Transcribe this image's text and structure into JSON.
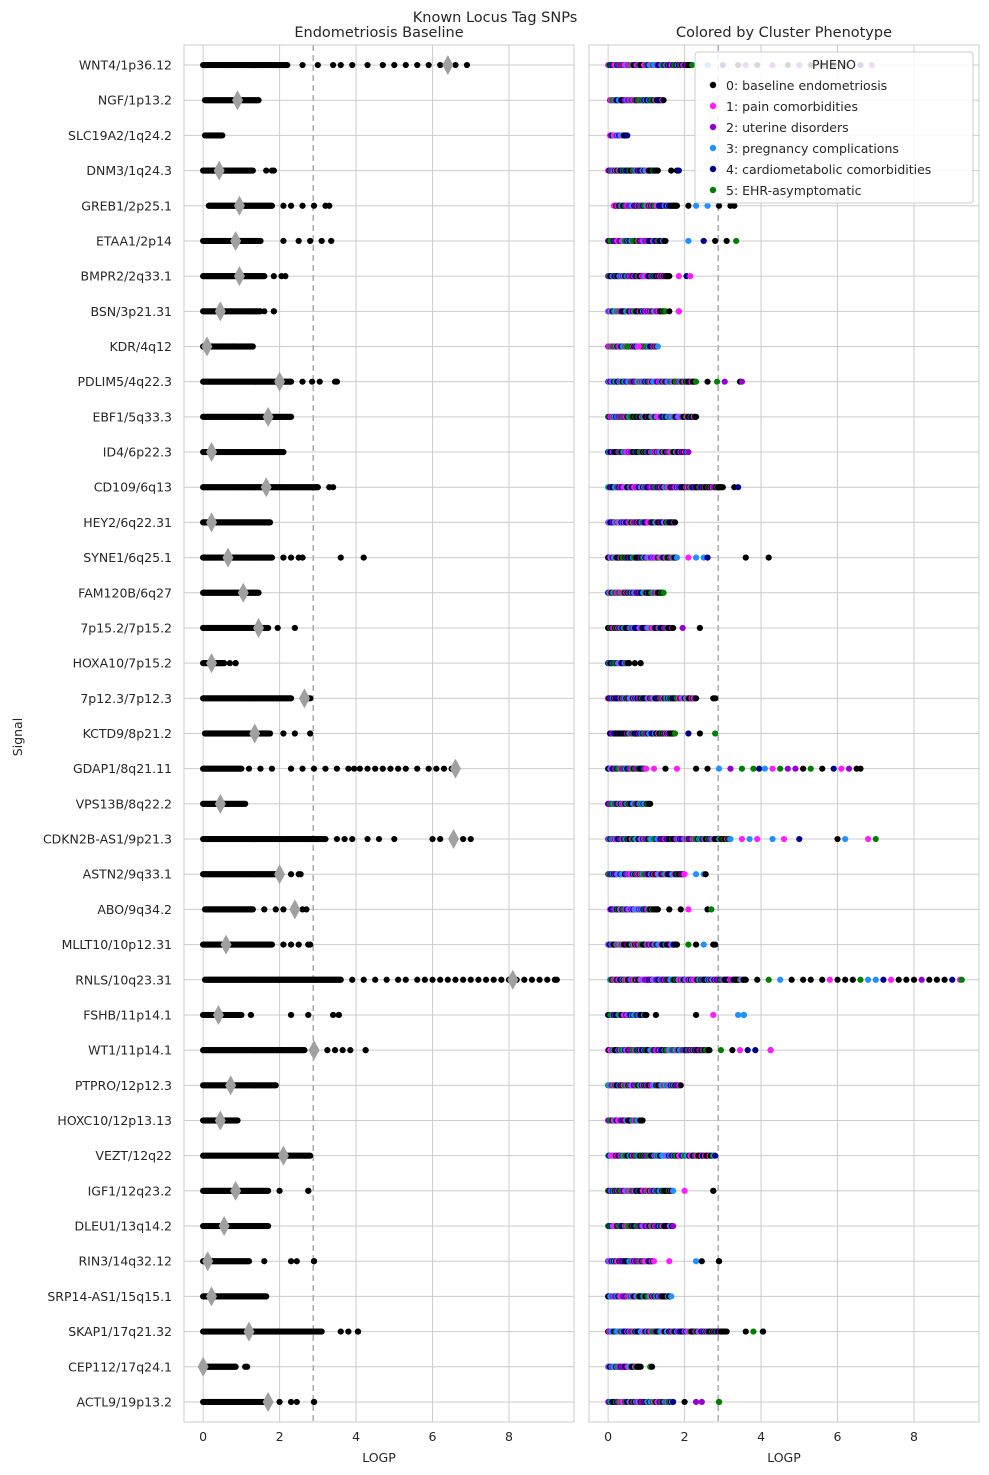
{
  "chart_data": {
    "type": "scatter",
    "suptitle": "Known Locus Tag SNPs",
    "ylabel": "Signal",
    "xlim": [
      -0.5,
      9.7
    ],
    "xticks": [
      0,
      2,
      4,
      6,
      8
    ],
    "threshold_line": 2.88,
    "grid": true,
    "colors": {
      "diamond": "#a0a0a0",
      "threshold": "#b0b0b0",
      "grid": "#cccccc",
      "frame": "#cccccc"
    },
    "signals": [
      {
        "name": "WNT4/1p36.12",
        "min": 0.0,
        "dense_end": 2.2,
        "max": 6.9,
        "median": 6.4,
        "extra": [
          2.6,
          3.0,
          3.4,
          3.6,
          3.9,
          4.3,
          4.7,
          5.0,
          5.3,
          5.6,
          5.9,
          6.2,
          6.6
        ]
      },
      {
        "name": "NGF/1p13.2",
        "min": 0.05,
        "dense_end": 1.45,
        "max": 1.45,
        "median": 0.9,
        "extra": []
      },
      {
        "name": "SLC19A2/1q24.2",
        "min": 0.05,
        "dense_end": 0.5,
        "max": 0.5,
        "median": null,
        "extra": []
      },
      {
        "name": "DNM3/1q24.3",
        "min": 0.0,
        "dense_end": 1.3,
        "max": 1.85,
        "median": 0.42,
        "extra": [
          1.65,
          1.8
        ]
      },
      {
        "name": "GREB1/2p25.1",
        "min": 0.15,
        "dense_end": 1.8,
        "max": 3.3,
        "median": 0.95,
        "extra": [
          2.1,
          2.3,
          2.6,
          2.9,
          3.2
        ]
      },
      {
        "name": "ETAA1/2p14",
        "min": 0.0,
        "dense_end": 1.5,
        "max": 3.35,
        "median": 0.85,
        "extra": [
          2.1,
          2.5,
          2.8,
          3.1
        ]
      },
      {
        "name": "BMPR2/2q33.1",
        "min": 0.0,
        "dense_end": 1.6,
        "max": 2.15,
        "median": 0.95,
        "extra": [
          1.85,
          2.05
        ]
      },
      {
        "name": "BSN/3p21.31",
        "min": 0.0,
        "dense_end": 1.5,
        "max": 1.85,
        "median": 0.45,
        "extra": [
          1.6,
          1.85
        ]
      },
      {
        "name": "KDR/4q12",
        "min": 0.0,
        "dense_end": 1.3,
        "max": 1.3,
        "median": 0.1,
        "extra": [
          0.5,
          0.8
        ]
      },
      {
        "name": "PDLIM5/4q22.3",
        "min": 0.0,
        "dense_end": 2.3,
        "max": 3.5,
        "median": 2.0,
        "extra": [
          2.6,
          2.85,
          3.05,
          3.45
        ]
      },
      {
        "name": "EBF1/5q33.3",
        "min": 0.0,
        "dense_end": 2.3,
        "max": 2.3,
        "median": 1.7,
        "extra": []
      },
      {
        "name": "ID4/6p22.3",
        "min": 0.0,
        "dense_end": 2.1,
        "max": 2.1,
        "median": 0.22,
        "extra": []
      },
      {
        "name": "CD109/6q13",
        "min": 0.0,
        "dense_end": 3.0,
        "max": 3.4,
        "median": 1.65,
        "extra": [
          3.3
        ]
      },
      {
        "name": "HEY2/6q22.31",
        "min": 0.0,
        "dense_end": 1.75,
        "max": 1.75,
        "median": 0.22,
        "extra": []
      },
      {
        "name": "SYNE1/6q25.1",
        "min": 0.0,
        "dense_end": 1.8,
        "max": 4.2,
        "median": 0.65,
        "extra": [
          2.1,
          2.3,
          2.5,
          2.6,
          3.6
        ]
      },
      {
        "name": "FAM120B/6q27",
        "min": 0.0,
        "dense_end": 1.45,
        "max": 1.45,
        "median": 1.05,
        "extra": []
      },
      {
        "name": "7p15.2/7p15.2",
        "min": 0.0,
        "dense_end": 1.7,
        "max": 2.4,
        "median": 1.45,
        "extra": [
          1.95
        ]
      },
      {
        "name": "HOXA10/7p15.2",
        "min": 0.0,
        "dense_end": 0.55,
        "max": 0.85,
        "median": 0.22,
        "extra": [
          0.7,
          0.85
        ]
      },
      {
        "name": "7p12.3/7p12.3",
        "min": 0.0,
        "dense_end": 2.3,
        "max": 2.8,
        "median": 2.65,
        "extra": [
          2.75
        ]
      },
      {
        "name": "KCTD9/8p21.2",
        "min": 0.05,
        "dense_end": 1.75,
        "max": 2.8,
        "median": 1.35,
        "extra": [
          2.1,
          2.4
        ]
      },
      {
        "name": "GDAP1/8q21.11",
        "min": 0.0,
        "dense_end": 1.0,
        "max": 6.6,
        "median": 6.6,
        "extra": [
          1.2,
          1.5,
          1.8,
          2.3,
          2.6,
          2.9,
          3.2,
          3.5,
          3.8,
          3.95,
          4.1,
          4.3,
          4.5,
          4.7,
          4.9,
          5.1,
          5.3,
          5.6,
          5.9,
          6.1,
          6.3,
          6.5
        ]
      },
      {
        "name": "VPS13B/8q22.2",
        "min": 0.0,
        "dense_end": 1.1,
        "max": 1.1,
        "median": 0.45,
        "extra": []
      },
      {
        "name": "CDKN2B-AS1/9p21.3",
        "min": 0.0,
        "dense_end": 3.2,
        "max": 7.0,
        "median": 6.55,
        "extra": [
          3.5,
          3.7,
          3.9,
          4.3,
          4.6,
          5.0,
          6.0,
          6.2,
          6.8
        ]
      },
      {
        "name": "ASTN2/9q33.1",
        "min": 0.0,
        "dense_end": 2.0,
        "max": 2.55,
        "median": 2.0,
        "extra": [
          2.3,
          2.5
        ]
      },
      {
        "name": "ABO/9q34.2",
        "min": 0.05,
        "dense_end": 1.3,
        "max": 2.7,
        "median": 2.4,
        "extra": [
          1.6,
          1.9,
          2.1,
          2.6
        ]
      },
      {
        "name": "MLLT10/10p12.31",
        "min": 0.0,
        "dense_end": 1.8,
        "max": 2.8,
        "median": 0.6,
        "extra": [
          2.1,
          2.3,
          2.5,
          2.75
        ]
      },
      {
        "name": "RNLS/10q23.31",
        "min": 0.05,
        "dense_end": 3.6,
        "max": 9.25,
        "median": 8.1,
        "extra": [
          3.9,
          4.2,
          4.5,
          4.8,
          5.1,
          5.3,
          5.6,
          5.8,
          6.0,
          6.2,
          6.4,
          6.6,
          6.8,
          7.0,
          7.2,
          7.4,
          7.6,
          7.8,
          8.0,
          8.2,
          8.4,
          8.6,
          8.8,
          9.0,
          9.2
        ]
      },
      {
        "name": "FSHB/11p14.1",
        "min": 0.0,
        "dense_end": 1.0,
        "max": 3.55,
        "median": 0.4,
        "extra": [
          1.25,
          2.3,
          2.75,
          3.4,
          3.55
        ]
      },
      {
        "name": "WT1/11p14.1",
        "min": 0.0,
        "dense_end": 2.65,
        "max": 4.25,
        "median": 2.9,
        "extra": [
          2.95,
          3.25,
          3.45,
          3.65,
          3.85,
          4.25
        ]
      },
      {
        "name": "PTPRO/12p12.3",
        "min": 0.0,
        "dense_end": 1.9,
        "max": 1.9,
        "median": 0.72,
        "extra": []
      },
      {
        "name": "HOXC10/12p13.13",
        "min": 0.0,
        "dense_end": 0.9,
        "max": 0.9,
        "median": 0.45,
        "extra": []
      },
      {
        "name": "VEZT/12q22",
        "min": 0.0,
        "dense_end": 2.8,
        "max": 2.8,
        "median": 2.1,
        "extra": []
      },
      {
        "name": "IGF1/12q23.2",
        "min": 0.0,
        "dense_end": 1.7,
        "max": 2.75,
        "median": 0.85,
        "extra": [
          2.0,
          2.75
        ]
      },
      {
        "name": "DLEU1/13q14.2",
        "min": 0.0,
        "dense_end": 1.7,
        "max": 1.7,
        "median": 0.55,
        "extra": []
      },
      {
        "name": "RIN3/14q32.12",
        "min": 0.0,
        "dense_end": 1.2,
        "max": 2.9,
        "median": 0.12,
        "extra": [
          1.6,
          2.3,
          2.45,
          2.9
        ]
      },
      {
        "name": "SRP14-AS1/15q15.1",
        "min": 0.0,
        "dense_end": 1.65,
        "max": 1.65,
        "median": 0.22,
        "extra": []
      },
      {
        "name": "SKAP1/17q21.32",
        "min": 0.0,
        "dense_end": 3.1,
        "max": 4.05,
        "median": 1.2,
        "extra": [
          3.6,
          3.8,
          4.05
        ]
      },
      {
        "name": "CEP112/17q24.1",
        "min": 0.0,
        "dense_end": 0.85,
        "max": 1.15,
        "median": 0.0,
        "extra": [
          1.1
        ]
      },
      {
        "name": "ACTL9/19p13.2",
        "min": 0.0,
        "dense_end": 1.7,
        "max": 2.9,
        "median": 1.7,
        "extra": [
          2.0,
          2.3,
          2.45,
          2.9
        ]
      }
    ],
    "panels": [
      {
        "title": "Endometriosis Baseline",
        "xlabel": "LOGP",
        "mode": "baseline"
      },
      {
        "title": "Colored by Cluster Phenotype",
        "xlabel": "LOGP",
        "mode": "cluster"
      }
    ],
    "legend": {
      "title": "PHENO",
      "placement": "top-right",
      "entries": [
        {
          "label": "0: baseline endometriosis",
          "color": "#000000"
        },
        {
          "label": "1: pain comorbidities",
          "color": "#ff1aff"
        },
        {
          "label": "2: uterine disorders",
          "color": "#9400d3"
        },
        {
          "label": "3: pregnancy complications",
          "color": "#1e90ff"
        },
        {
          "label": "4: cardiometabolic comorbidities",
          "color": "#00008b"
        },
        {
          "label": "5: EHR-asymptomatic",
          "color": "#008000"
        }
      ]
    }
  }
}
